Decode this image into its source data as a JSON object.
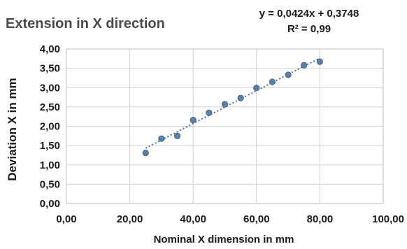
{
  "chart_data": {
    "type": "scatter",
    "title": "Extension in X direction",
    "xlabel": "Nominal X dimension in mm",
    "ylabel": "Deviation X in mm",
    "xlim": [
      0,
      100
    ],
    "ylim": [
      0,
      4
    ],
    "x_ticks": [
      "0,00",
      "20,00",
      "40,00",
      "60,00",
      "80,00",
      "100,00"
    ],
    "y_ticks": [
      "0,00",
      "0,50",
      "1,00",
      "1,50",
      "2,00",
      "2,50",
      "3,00",
      "3,50",
      "4,00"
    ],
    "grid": true,
    "points": [
      {
        "x": 25,
        "y": 1.31
      },
      {
        "x": 30,
        "y": 1.68
      },
      {
        "x": 35,
        "y": 1.75
      },
      {
        "x": 40,
        "y": 2.16
      },
      {
        "x": 45,
        "y": 2.35
      },
      {
        "x": 50,
        "y": 2.57
      },
      {
        "x": 55,
        "y": 2.73
      },
      {
        "x": 60,
        "y": 2.99
      },
      {
        "x": 65,
        "y": 3.15
      },
      {
        "x": 70,
        "y": 3.33
      },
      {
        "x": 75,
        "y": 3.58
      },
      {
        "x": 80,
        "y": 3.67
      }
    ],
    "trendline": {
      "type": "linear",
      "slope": 0.0424,
      "intercept": 0.3748,
      "x_range": [
        25,
        80
      ],
      "equation": "y = 0,0424x + 0,3748",
      "r_squared": "R² = 0,99"
    },
    "colors": {
      "point": "#5b7fa6",
      "point_edge": "#3e5f85",
      "trendline": "#4472a0"
    }
  }
}
